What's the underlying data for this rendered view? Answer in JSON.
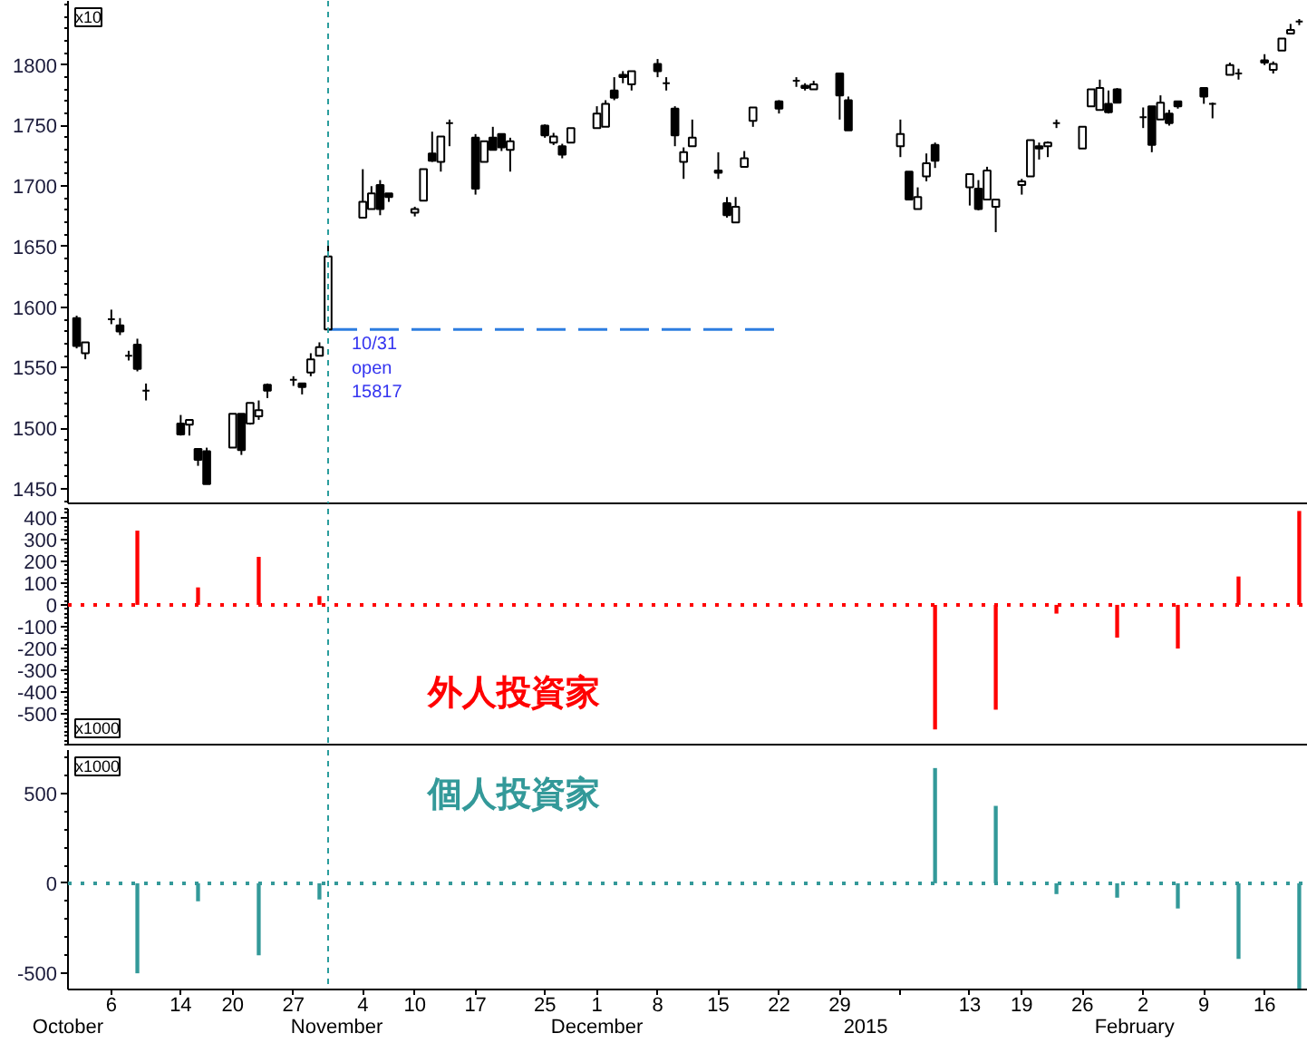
{
  "chart_data": [
    {
      "type": "candlestick",
      "ylabel": "x10",
      "x": [
        "2014-10-02",
        "2014-10-03",
        "2014-10-06",
        "2014-10-07",
        "2014-10-08",
        "2014-10-09",
        "2014-10-10",
        "2014-10-14",
        "2014-10-15",
        "2014-10-16",
        "2014-10-17",
        "2014-10-20",
        "2014-10-21",
        "2014-10-22",
        "2014-10-23",
        "2014-10-24",
        "2014-10-27",
        "2014-10-28",
        "2014-10-29",
        "2014-10-30",
        "2014-10-31",
        "2014-11-04",
        "2014-11-05",
        "2014-11-06",
        "2014-11-07",
        "2014-11-10",
        "2014-11-11",
        "2014-11-12",
        "2014-11-13",
        "2014-11-14",
        "2014-11-17",
        "2014-11-18",
        "2014-11-19",
        "2014-11-20",
        "2014-11-21",
        "2014-11-25",
        "2014-11-26",
        "2014-11-27",
        "2014-11-28",
        "2014-12-01",
        "2014-12-02",
        "2014-12-03",
        "2014-12-04",
        "2014-12-05",
        "2014-12-08",
        "2014-12-09",
        "2014-12-10",
        "2014-12-11",
        "2014-12-12",
        "2014-12-15",
        "2014-12-16",
        "2014-12-17",
        "2014-12-18",
        "2014-12-19",
        "2014-12-22",
        "2014-12-24",
        "2014-12-25",
        "2014-12-26",
        "2014-12-29",
        "2014-12-30",
        "2015-01-05",
        "2015-01-06",
        "2015-01-07",
        "2015-01-08",
        "2015-01-09",
        "2015-01-13",
        "2015-01-14",
        "2015-01-15",
        "2015-01-16",
        "2015-01-19",
        "2015-01-20",
        "2015-01-21",
        "2015-01-22",
        "2015-01-23",
        "2015-01-26",
        "2015-01-27",
        "2015-01-28",
        "2015-01-29",
        "2015-01-30",
        "2015-02-02",
        "2015-02-03",
        "2015-02-04",
        "2015-02-05",
        "2015-02-06",
        "2015-02-09",
        "2015-02-10",
        "2015-02-12",
        "2015-02-13",
        "2015-02-16",
        "2015-02-17",
        "2015-02-18",
        "2015-02-19",
        "2015-02-20"
      ],
      "ohlc": [
        [
          1591,
          1593,
          1566,
          1568
        ],
        [
          1562,
          1571,
          1557,
          1571
        ],
        [
          1590,
          1598,
          1586,
          1590
        ],
        [
          1585,
          1591,
          1577,
          1580
        ],
        [
          1560,
          1564,
          1556,
          1560
        ],
        [
          1569,
          1574,
          1547,
          1549
        ],
        [
          1531,
          1537,
          1523,
          1531
        ],
        [
          1504,
          1511,
          1494,
          1495
        ],
        [
          1503,
          1507,
          1494,
          1507
        ],
        [
          1483,
          1483,
          1469,
          1474
        ],
        [
          1481,
          1484,
          1454,
          1454
        ],
        [
          1484,
          1512,
          1484,
          1512
        ],
        [
          1512,
          1512,
          1478,
          1482
        ],
        [
          1504,
          1521,
          1503,
          1521
        ],
        [
          1510,
          1523,
          1507,
          1515
        ],
        [
          1536,
          1537,
          1525,
          1531
        ],
        [
          1540,
          1543,
          1535,
          1540
        ],
        [
          1537,
          1537,
          1528,
          1534
        ],
        [
          1546,
          1562,
          1543,
          1557
        ],
        [
          1560,
          1571,
          1560,
          1567
        ],
        [
          1581.7,
          1655,
          1581.7,
          1642
        ],
        [
          1674,
          1714,
          1674,
          1687
        ],
        [
          1681,
          1700,
          1681,
          1694
        ],
        [
          1701,
          1705,
          1676,
          1681
        ],
        [
          1694,
          1694,
          1687,
          1691
        ],
        [
          1678,
          1683,
          1675,
          1681
        ],
        [
          1688,
          1714,
          1688,
          1714
        ],
        [
          1727,
          1745,
          1720,
          1721
        ],
        [
          1720,
          1741,
          1712,
          1741
        ],
        [
          1752,
          1755,
          1733,
          1752
        ],
        [
          1740,
          1743,
          1693,
          1698
        ],
        [
          1720,
          1737,
          1720,
          1737
        ],
        [
          1740,
          1749,
          1730,
          1730
        ],
        [
          1743,
          1743,
          1729,
          1732
        ],
        [
          1730,
          1740,
          1712,
          1737
        ],
        [
          1750,
          1751,
          1740,
          1742
        ],
        [
          1736,
          1744,
          1734,
          1741
        ],
        [
          1733,
          1735,
          1723,
          1726
        ],
        [
          1736,
          1748,
          1736,
          1748
        ],
        [
          1748,
          1766,
          1748,
          1760
        ],
        [
          1749,
          1771,
          1749,
          1768
        ],
        [
          1779,
          1790,
          1771,
          1773
        ],
        [
          1792,
          1795,
          1785,
          1790
        ],
        [
          1784,
          1795,
          1779,
          1795
        ],
        [
          1801,
          1805,
          1790,
          1795
        ],
        [
          1785,
          1790,
          1779,
          1785
        ],
        [
          1764,
          1766,
          1733,
          1742
        ],
        [
          1720,
          1732,
          1706,
          1728
        ],
        [
          1733,
          1755,
          1733,
          1740
        ],
        [
          1713,
          1728,
          1706,
          1711
        ],
        [
          1686,
          1691,
          1674,
          1676
        ],
        [
          1670,
          1691,
          1670,
          1683
        ],
        [
          1716,
          1729,
          1716,
          1723
        ],
        [
          1754,
          1765,
          1749,
          1765
        ],
        [
          1770,
          1771,
          1760,
          1764
        ],
        [
          1787,
          1790,
          1782,
          1787
        ],
        [
          1783,
          1785,
          1779,
          1781
        ],
        [
          1780,
          1787,
          1780,
          1784
        ],
        [
          1793,
          1793,
          1755,
          1775
        ],
        [
          1771,
          1774,
          1746,
          1746
        ],
        [
          1733,
          1755,
          1724,
          1743
        ],
        [
          1712,
          1712,
          1689,
          1689
        ],
        [
          1681,
          1699,
          1681,
          1691
        ],
        [
          1708,
          1727,
          1704,
          1719
        ],
        [
          1734,
          1736,
          1715,
          1721
        ],
        [
          1699,
          1710,
          1684,
          1710
        ],
        [
          1698,
          1705,
          1680,
          1681
        ],
        [
          1689,
          1716,
          1689,
          1713
        ],
        [
          1683,
          1689,
          1662,
          1689
        ],
        [
          1701,
          1706,
          1693,
          1704
        ],
        [
          1708,
          1738,
          1708,
          1738
        ],
        [
          1733,
          1736,
          1722,
          1731
        ],
        [
          1733,
          1737,
          1724,
          1736
        ],
        [
          1752,
          1755,
          1748,
          1752
        ],
        [
          1731,
          1749,
          1731,
          1749
        ],
        [
          1766,
          1780,
          1766,
          1780
        ],
        [
          1763,
          1788,
          1763,
          1781
        ],
        [
          1768,
          1779,
          1760,
          1761
        ],
        [
          1780,
          1781,
          1769,
          1769
        ],
        [
          1757,
          1765,
          1748,
          1757
        ],
        [
          1766,
          1766,
          1728,
          1734
        ],
        [
          1755,
          1775,
          1755,
          1769
        ],
        [
          1760,
          1763,
          1750,
          1752
        ],
        [
          1770,
          1770,
          1764,
          1766
        ],
        [
          1781,
          1781,
          1768,
          1774
        ],
        [
          1768,
          1769,
          1756,
          1768
        ],
        [
          1792,
          1802,
          1792,
          1800
        ],
        [
          1793,
          1797,
          1788,
          1793
        ],
        [
          1804,
          1809,
          1800,
          1802
        ],
        [
          1796,
          1803,
          1793,
          1801
        ],
        [
          1812,
          1822,
          1812,
          1822
        ],
        [
          1826,
          1834,
          1826,
          1829
        ],
        [
          1836,
          1838,
          1833,
          1836
        ]
      ],
      "series": [
        {
          "type": "line",
          "x": [
            "2014-10-31",
            "2014-12-22"
          ],
          "values": [
            1581.7,
            1581.7
          ],
          "color": "#2d7de0",
          "line_style": "dashed"
        }
      ],
      "xlim": [
        "2014-10-01",
        "2015-02-21"
      ],
      "ylim": [
        1438,
        1853
      ],
      "yticks": [
        1450,
        1500,
        1550,
        1600,
        1650,
        1700,
        1750,
        1800
      ],
      "tick_labels": "y",
      "ref_lines": [
        {
          "axis": "x",
          "value": "2014-10-31",
          "color": "#2a9d9d",
          "line_style": "dashed"
        }
      ],
      "annotations": [
        {
          "text": "10/31\nopen\n15817",
          "x": "2014-10-31",
          "y": 1581.7
        }
      ]
    },
    {
      "type": "bar",
      "ylabel": "x1000",
      "x": [
        "2014-10-09",
        "2014-10-16",
        "2014-10-23",
        "2014-10-30",
        "2015-01-09",
        "2015-01-16",
        "2015-01-23",
        "2015-01-30",
        "2015-02-06",
        "2015-02-13",
        "2015-02-20"
      ],
      "series": [
        {
          "name": "外人投資家",
          "color": "#ff0000",
          "values": [
            340,
            80,
            220,
            40,
            -570,
            -480,
            -40,
            -150,
            -200,
            130,
            430
          ]
        }
      ],
      "xlim": [
        "2014-10-01",
        "2015-02-21"
      ],
      "ylim": [
        -640,
        440
      ],
      "yticks": [
        -500,
        -400,
        -300,
        -200,
        -100,
        0,
        100,
        200,
        300,
        400
      ],
      "tick_labels": "y",
      "ref_lines": [
        {
          "axis": "y",
          "value": 0,
          "color": "#ff0000",
          "line_style": "dotted"
        },
        {
          "axis": "x",
          "value": "2014-10-31",
          "color": "#2a9d9d",
          "line_style": "dashed"
        }
      ]
    },
    {
      "type": "bar",
      "ylabel": "x1000",
      "x": [
        "2014-10-09",
        "2014-10-16",
        "2014-10-23",
        "2014-10-30",
        "2015-01-09",
        "2015-01-16",
        "2015-01-23",
        "2015-01-30",
        "2015-02-06",
        "2015-02-13",
        "2015-02-20"
      ],
      "series": [
        {
          "name": "個人投資家",
          "color": "#339999",
          "values": [
            -500,
            -100,
            -400,
            -90,
            640,
            430,
            -60,
            -80,
            -140,
            -420,
            -590
          ]
        }
      ],
      "xlim": [
        "2014-10-01",
        "2015-02-21"
      ],
      "ylim": [
        -590,
        740
      ],
      "yticks": [
        -500,
        0,
        500
      ],
      "xticks": [
        {
          "value": "2014-10-06",
          "label": "6"
        },
        {
          "value": "2014-10-14",
          "label": "14"
        },
        {
          "value": "2014-10-20",
          "label": "20"
        },
        {
          "value": "2014-10-27",
          "label": "27"
        },
        {
          "value": "2014-11-04",
          "label": "4"
        },
        {
          "value": "2014-11-10",
          "label": "10"
        },
        {
          "value": "2014-11-17",
          "label": "17"
        },
        {
          "value": "2014-11-25",
          "label": "25"
        },
        {
          "value": "2014-12-01",
          "label": "1"
        },
        {
          "value": "2014-12-08",
          "label": "8"
        },
        {
          "value": "2014-12-15",
          "label": "15"
        },
        {
          "value": "2014-12-22",
          "label": "22"
        },
        {
          "value": "2014-12-29",
          "label": "29"
        },
        {
          "value": "2015-01-05",
          "label": null
        },
        {
          "value": "2015-01-13",
          "label": "13"
        },
        {
          "value": "2015-01-19",
          "label": "19"
        },
        {
          "value": "2015-01-26",
          "label": "26"
        },
        {
          "value": "2015-02-02",
          "label": "2"
        },
        {
          "value": "2015-02-09",
          "label": "9"
        },
        {
          "value": "2015-02-16",
          "label": "16"
        }
      ],
      "x2lim": [
        "2014-10-01",
        "2015-02-21"
      ],
      "x2ticks": [
        {
          "value": "2014-10-01",
          "label": "October"
        },
        {
          "value": "2014-11-01",
          "label": "November"
        },
        {
          "value": "2014-12-01",
          "label": "December"
        },
        {
          "value": "2015-01-01",
          "label": "2015"
        },
        {
          "value": "2015-02-01",
          "label": "February"
        }
      ],
      "ref_lines": [
        {
          "axis": "y",
          "value": 0,
          "color": "#339999",
          "line_style": "dotted"
        },
        {
          "axis": "x",
          "value": "2014-10-31",
          "color": "#2a9d9d",
          "line_style": "dashed"
        }
      ]
    }
  ]
}
